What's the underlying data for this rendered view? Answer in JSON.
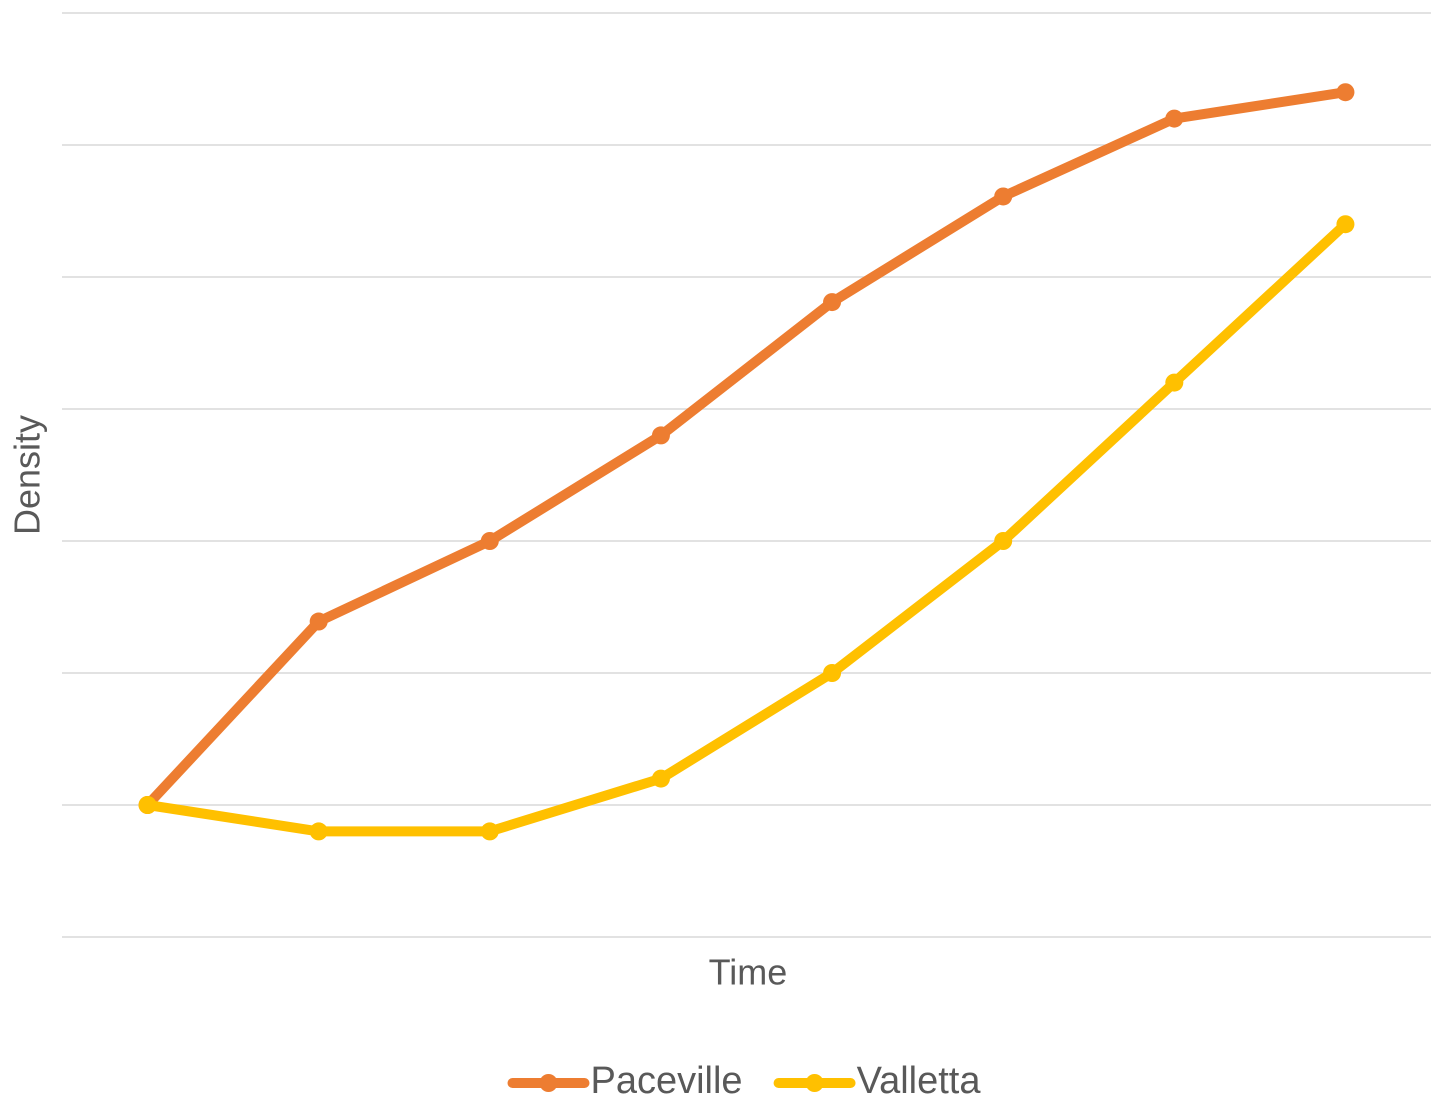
{
  "chart_data": {
    "type": "line",
    "x_label": "Time",
    "y_label": "Density",
    "categories": [
      null,
      null,
      null,
      null,
      null,
      null,
      null,
      null
    ],
    "series": [
      {
        "name": "Paceville",
        "color": "#ED7D31",
        "values": [
          1.0,
          2.39,
          3.0,
          3.8,
          4.81,
          5.61,
          6.2,
          6.4
        ]
      },
      {
        "name": "Valletta",
        "color": "#FFC000",
        "values": [
          1.0,
          0.8,
          0.8,
          1.2,
          2.0,
          3.0,
          4.2,
          5.4
        ]
      }
    ],
    "ylim": [
      0,
      7
    ],
    "yticks": [
      0,
      1,
      2,
      3,
      4,
      5,
      6,
      7
    ],
    "grid": true,
    "legend": "bottom"
  }
}
